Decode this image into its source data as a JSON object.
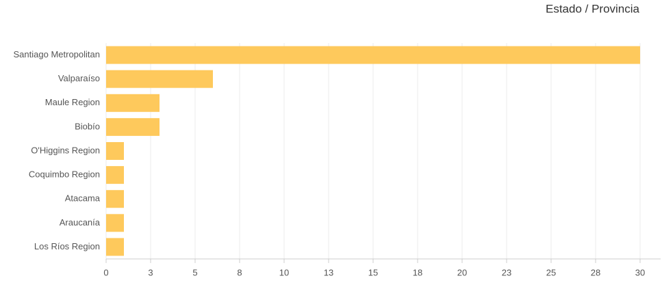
{
  "chart_data": {
    "type": "hbar",
    "title": "Estado / Provincia",
    "categories": [
      "Santiago Metropolitan",
      "Valparaíso",
      "Maule Region",
      "Biobío",
      "O'Higgins Region",
      "Coquimbo Region",
      "Atacama",
      "Araucanía",
      "Los Ríos Region"
    ],
    "values": [
      30,
      6,
      3,
      3,
      1,
      1,
      1,
      1,
      1
    ],
    "color": "#fec95c",
    "xlim": [
      0,
      30
    ],
    "xticks": [
      0,
      {
        "value": 2.5,
        "label": "3"
      },
      5,
      {
        "value": 7.5,
        "label": "8"
      },
      10,
      {
        "value": 12.5,
        "label": "13"
      },
      15,
      {
        "value": 17.5,
        "label": "18"
      },
      20,
      {
        "value": 22.5,
        "label": "23"
      },
      25,
      {
        "value": 27.5,
        "label": "28"
      },
      30
    ],
    "grid": true
  }
}
